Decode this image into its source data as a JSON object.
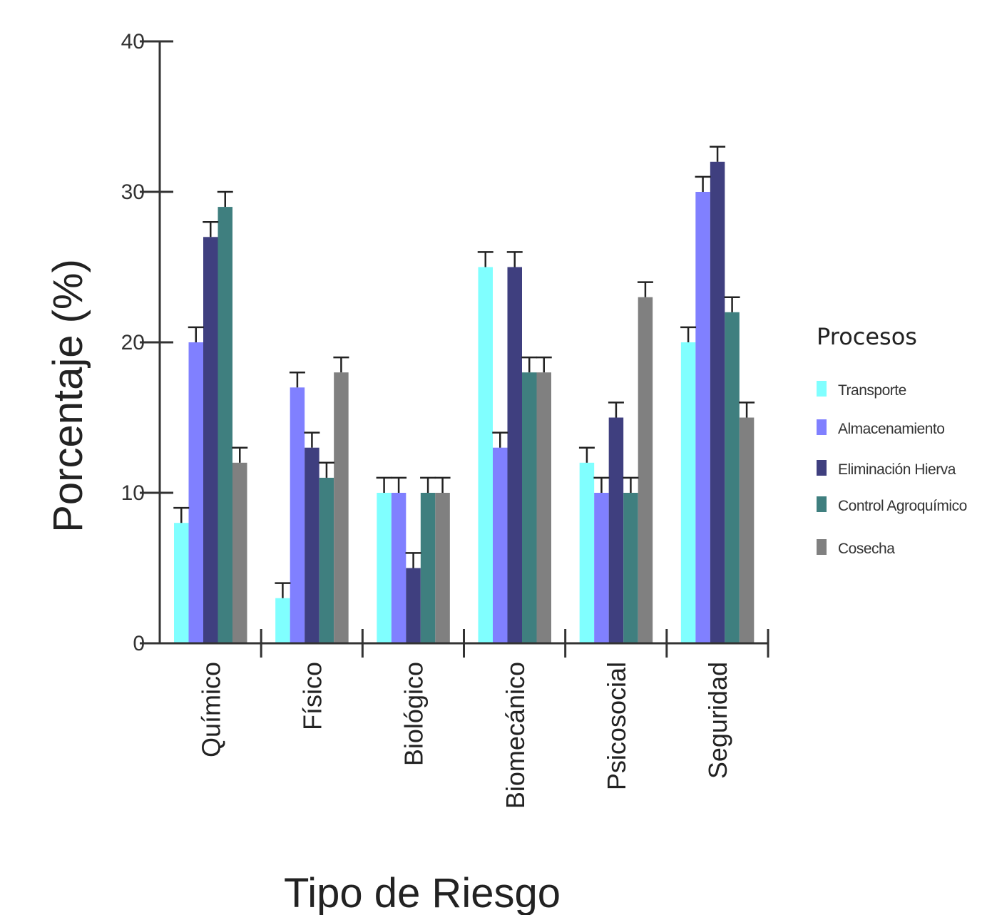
{
  "chart_data": {
    "type": "bar",
    "xlabel": "Tipo de Riesgo",
    "ylabel": "Porcentaje (%)",
    "ylim": [
      0,
      40
    ],
    "yticks": [
      "0",
      "10",
      "20",
      "30",
      "40"
    ],
    "categories": [
      "Químico",
      "Físico",
      "Biológico",
      "Biomecánico",
      "Psicosocial",
      "Seguridad"
    ],
    "legend": {
      "title": "Procesos",
      "position": "right"
    },
    "error_bars": true,
    "series": [
      {
        "name": "Transporte",
        "color": "#80ffff",
        "values": [
          8,
          3,
          10,
          25,
          12,
          20
        ],
        "error": [
          1,
          1,
          1,
          1,
          1,
          1
        ]
      },
      {
        "name": "Almacenamiento",
        "color": "#8080ff",
        "values": [
          20,
          17,
          10,
          13,
          10,
          30
        ],
        "error": [
          1,
          1,
          1,
          1,
          1,
          1
        ]
      },
      {
        "name": "Eliminación Hierva",
        "color": "#3f3f7f",
        "values": [
          27,
          13,
          5,
          25,
          15,
          32
        ],
        "error": [
          1,
          1,
          1,
          1,
          1,
          1
        ]
      },
      {
        "name": "Control Agroquímico",
        "color": "#3f7f7f",
        "values": [
          29,
          11,
          10,
          18,
          10,
          22
        ],
        "error": [
          1,
          1,
          1,
          1,
          1,
          1
        ]
      },
      {
        "name": "Cosecha",
        "color": "#808080",
        "values": [
          12,
          18,
          10,
          18,
          23,
          15
        ],
        "error": [
          1,
          1,
          1,
          1,
          1,
          1
        ]
      }
    ]
  }
}
